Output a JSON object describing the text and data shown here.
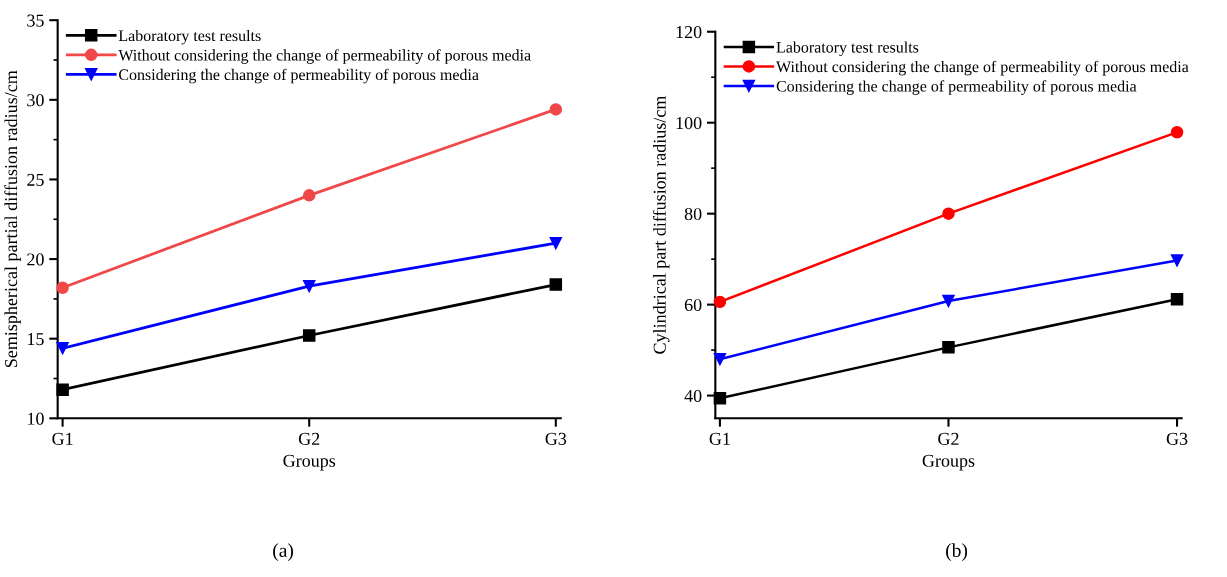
{
  "chart_data": [
    {
      "type": "line",
      "categories": [
        "G1",
        "G2",
        "G3"
      ],
      "xlabel": "Groups",
      "ylabel": "Semispherical partial diffusion radius/cm",
      "ylim": [
        10,
        35
      ],
      "yticks": [
        10,
        15,
        20,
        25,
        30,
        35
      ],
      "legend": "top left",
      "annotations": [
        "(a)"
      ],
      "series": [
        {
          "name": "Laboratory test results",
          "color": "#000000",
          "marker": "square",
          "values": [
            11.8,
            15.2,
            18.4
          ]
        },
        {
          "name": "Without considering the change of permeability of porous media",
          "color": "#f04848",
          "marker": "circle",
          "values": [
            18.2,
            24.0,
            29.4
          ]
        },
        {
          "name": "Considering the change of permeability of porous media",
          "color": "#0000ff",
          "marker": "triangle",
          "values": [
            14.4,
            18.3,
            21.0
          ]
        }
      ]
    },
    {
      "type": "line",
      "categories": [
        "G1",
        "G2",
        "G3"
      ],
      "xlabel": "Groups",
      "ylabel": "Cylindrical part diffusion radius/cm",
      "ylim": [
        35,
        120
      ],
      "yticks": [
        40,
        60,
        80,
        100,
        120
      ],
      "legend": "top left",
      "annotations": [
        "(b)"
      ],
      "series": [
        {
          "name": "Laboratory test results",
          "color": "#000000",
          "marker": "square",
          "values": [
            39.4,
            50.6,
            61.2
          ]
        },
        {
          "name": "Without considering the change of permeability of porous media",
          "color": "#ff0000",
          "marker": "circle",
          "values": [
            60.6,
            80.0,
            97.9
          ]
        },
        {
          "name": "Considering the change of permeability of porous media",
          "color": "#0000ff",
          "marker": "triangle",
          "values": [
            48.0,
            60.8,
            69.7
          ]
        }
      ]
    }
  ]
}
